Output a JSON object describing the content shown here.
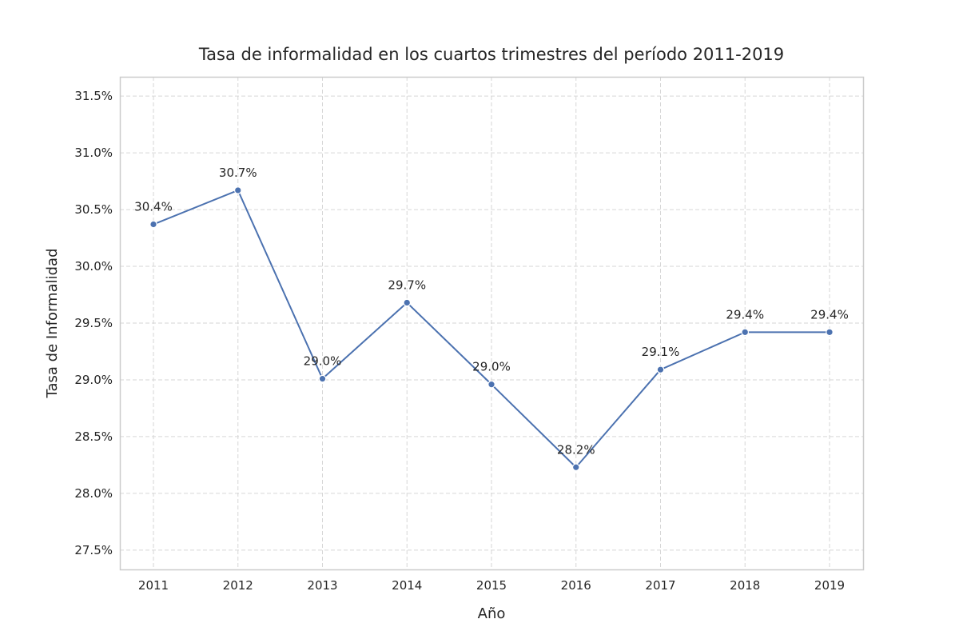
{
  "chart_data": {
    "type": "line",
    "title": "Tasa de informalidad en los cuartos trimestres del período 2011-2019",
    "xlabel": "Año",
    "ylabel": "Tasa de Informalidad",
    "categories": [
      "2011",
      "2012",
      "2013",
      "2014",
      "2015",
      "2016",
      "2017",
      "2018",
      "2019"
    ],
    "series": [
      {
        "values": [
          30.37,
          30.67,
          29.01,
          29.68,
          28.96,
          28.23,
          29.09,
          29.42,
          29.42
        ],
        "labels": [
          "30.4%",
          "30.7%",
          "29.0%",
          "29.7%",
          "29.0%",
          "28.2%",
          "29.1%",
          "29.4%",
          "29.4%"
        ],
        "color": "#4c72b0"
      }
    ],
    "ylim": [
      27.33,
      31.67
    ],
    "yticks": [
      27.5,
      28.0,
      28.5,
      29.0,
      29.5,
      30.0,
      30.5,
      31.0,
      31.5
    ],
    "ytick_labels": [
      "27.5%",
      "28.0%",
      "28.5%",
      "29.0%",
      "29.5%",
      "30.0%",
      "30.5%",
      "31.0%",
      "31.5%"
    ],
    "grid": true,
    "legend": false
  }
}
